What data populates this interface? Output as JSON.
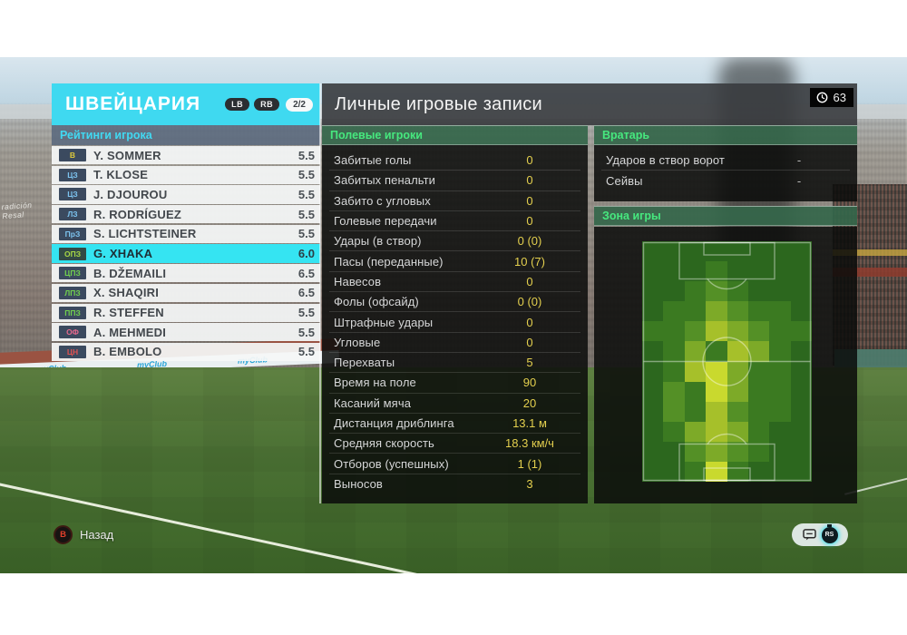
{
  "team_panel": {
    "team_name": "ШВЕЙЦАРИЯ",
    "nav_left": "LB",
    "nav_right": "RB",
    "page_indicator": "2/2",
    "section_title": "Рейтинги игрока",
    "players": [
      {
        "pos": "В",
        "pos_color": "#ddc93c",
        "name": "Y. SOMMER",
        "rating": "5.5",
        "selected": false
      },
      {
        "pos": "ЦЗ",
        "pos_color": "#7cc3ef",
        "name": "T. KLOSE",
        "rating": "5.5",
        "selected": false
      },
      {
        "pos": "ЦЗ",
        "pos_color": "#7cc3ef",
        "name": "J. DJOUROU",
        "rating": "5.5",
        "selected": false
      },
      {
        "pos": "ЛЗ",
        "pos_color": "#7cc3ef",
        "name": "R. RODRÍGUEZ",
        "rating": "5.5",
        "selected": false
      },
      {
        "pos": "ПрЗ",
        "pos_color": "#7cc3ef",
        "name": "S. LICHTSTEINER",
        "rating": "5.5",
        "selected": false
      },
      {
        "pos": "ОПЗ",
        "pos_color": "#a8d845",
        "name": "G. XHAKA",
        "rating": "6.0",
        "selected": true
      },
      {
        "pos": "ЦПЗ",
        "pos_color": "#72d14e",
        "name": "B. DŽEMAILI",
        "rating": "6.5",
        "selected": false
      },
      {
        "pos": "ЛПЗ",
        "pos_color": "#72d14e",
        "name": "X. SHAQIRI",
        "rating": "6.5",
        "selected": false
      },
      {
        "pos": "ППЗ",
        "pos_color": "#72d14e",
        "name": "R. STEFFEN",
        "rating": "5.5",
        "selected": false
      },
      {
        "pos": "ОФ",
        "pos_color": "#e86a8e",
        "name": "A. MEHMEDI",
        "rating": "5.5",
        "selected": false
      },
      {
        "pos": "ЦН",
        "pos_color": "#e05252",
        "name": "B. EMBOLO",
        "rating": "5.5",
        "selected": false
      }
    ]
  },
  "stats_panel": {
    "title": "Личные игровые записи",
    "time_badge": "63",
    "field_players": {
      "header": "Полевые игроки",
      "rows": [
        {
          "label": "Забитые голы",
          "value": "0"
        },
        {
          "label": "Забитых пенальти",
          "value": "0"
        },
        {
          "label": "Забито с угловых",
          "value": "0"
        },
        {
          "label": "Голевые передачи",
          "value": "0"
        },
        {
          "label": "Удары (в створ)",
          "value": "0 (0)"
        },
        {
          "label": "Пасы (переданные)",
          "value": "10 (7)"
        },
        {
          "label": "Навесов",
          "value": "0"
        },
        {
          "label": "Фолы (офсайд)",
          "value": "0 (0)"
        },
        {
          "label": "Штрафные удары",
          "value": "0"
        },
        {
          "label": "Угловые",
          "value": "0"
        },
        {
          "label": "Перехваты",
          "value": "5"
        },
        {
          "label": "Время на поле",
          "value": "90"
        },
        {
          "label": "Касаний мяча",
          "value": "20"
        },
        {
          "label": "Дистанция дриблинга",
          "value": "13.1 м"
        },
        {
          "label": "Средняя скорость",
          "value": "18.3 км/ч"
        },
        {
          "label": "Отборов (успешных)",
          "value": "1 (1)"
        },
        {
          "label": "Выносов",
          "value": "3"
        }
      ]
    },
    "goalkeeper": {
      "header": "Вратарь",
      "rows": [
        {
          "label": "Ударов в створ ворот",
          "value": "-"
        },
        {
          "label": "Сейвы",
          "value": "-"
        }
      ]
    },
    "zone": {
      "header": "Зона игры",
      "heatmap": {
        "palette": [
          "#2c671e",
          "#3b7a21",
          "#549026",
          "#7daa28",
          "#a6c02a",
          "#c9d92e"
        ],
        "grid": [
          [
            0,
            0,
            0,
            0,
            0,
            0,
            0,
            0
          ],
          [
            0,
            0,
            0,
            1,
            0,
            0,
            0,
            0
          ],
          [
            0,
            0,
            1,
            2,
            1,
            0,
            0,
            0
          ],
          [
            0,
            1,
            1,
            3,
            2,
            1,
            1,
            0
          ],
          [
            1,
            1,
            2,
            4,
            3,
            2,
            1,
            1
          ],
          [
            0,
            1,
            3,
            1,
            4,
            3,
            1,
            0
          ],
          [
            0,
            1,
            4,
            5,
            3,
            1,
            1,
            0
          ],
          [
            0,
            2,
            1,
            5,
            3,
            1,
            1,
            0
          ],
          [
            0,
            2,
            1,
            4,
            2,
            1,
            1,
            0
          ],
          [
            0,
            1,
            3,
            4,
            3,
            1,
            0,
            0
          ],
          [
            0,
            0,
            2,
            3,
            2,
            1,
            0,
            0
          ],
          [
            0,
            0,
            1,
            5,
            1,
            0,
            0,
            0
          ]
        ]
      }
    }
  },
  "footer": {
    "back_button": "B",
    "back_label": "Назад",
    "rs_button": "RS"
  },
  "background": {
    "ad_board_text": "myClub",
    "banner_text": "radición Resal"
  },
  "colors": {
    "accent_cyan": "#3fd9f0",
    "selected_row": "#35e4f2",
    "value_yellow": "#e3cf4e",
    "header_green": "#46e87e",
    "badge_bg": "#3b4a5f"
  }
}
